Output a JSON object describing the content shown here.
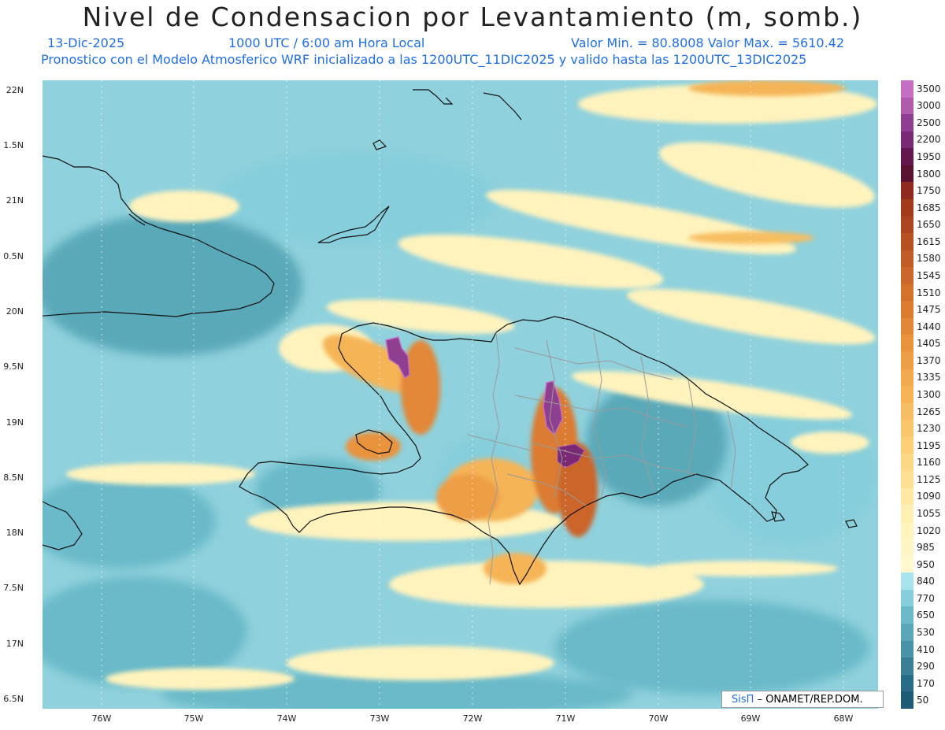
{
  "title": "Nivel de Condensacion por Levantamiento (m, somb.)",
  "date": "13-Dic-2025",
  "time": "1000 UTC / 6:00 am Hora Local",
  "minmax": "Valor Min. = 80.8008   Valor Max. = 5610.42",
  "info": "Pronostico con el Modelo Atmosferico WRF inicializado a las 1200UTC_11DIC2025 y valido hasta las  1200UTC_13DIC2025",
  "lat_labels": [
    "22N",
    "1.5N",
    "21N",
    "0.5N",
    "20N",
    "9.5N",
    "19N",
    "8.5N",
    "18N",
    "7.5N",
    "17N",
    "6.5N"
  ],
  "lon_labels": [
    "76W",
    "75W",
    "74W",
    "73W",
    "72W",
    "71W",
    "70W",
    "69W",
    "68W"
  ],
  "colorbar": {
    "labels": [
      "3500",
      "3000",
      "2500",
      "2200",
      "1950",
      "1800",
      "1750",
      "1685",
      "1650",
      "1615",
      "1580",
      "1545",
      "1510",
      "1475",
      "1440",
      "1405",
      "1370",
      "1335",
      "1300",
      "1265",
      "1230",
      "1195",
      "1160",
      "1125",
      "1090",
      "1055",
      "1020",
      "985",
      "950",
      "840",
      "770",
      "650",
      "530",
      "410",
      "290",
      "170",
      "50"
    ],
    "colors": [
      "#c46fc4",
      "#b05aaa",
      "#8f3f8f",
      "#7a2a74",
      "#60184e",
      "#5a1430",
      "#8e2a1e",
      "#a23a1c",
      "#ad4420",
      "#b84f22",
      "#c25a26",
      "#cb6529",
      "#d4712d",
      "#dc7c31",
      "#e38737",
      "#e9933d",
      "#ee9e44",
      "#f2a94c",
      "#f5b456",
      "#f7bd60",
      "#f9c66b",
      "#fbcf77",
      "#fcd784",
      "#fde093",
      "#fee8a3",
      "#fff0b3",
      "#fff3bd",
      "#fff6c6",
      "#fff8cf",
      "#a8e2ea",
      "#86cedb",
      "#6bbac9",
      "#58a6b8",
      "#4893a7",
      "#397f96",
      "#2a6c85",
      "#1e5a74"
    ]
  },
  "logo": {
    "brand": "SisΠ",
    "text": "– ONAMET/REP.DOM."
  }
}
